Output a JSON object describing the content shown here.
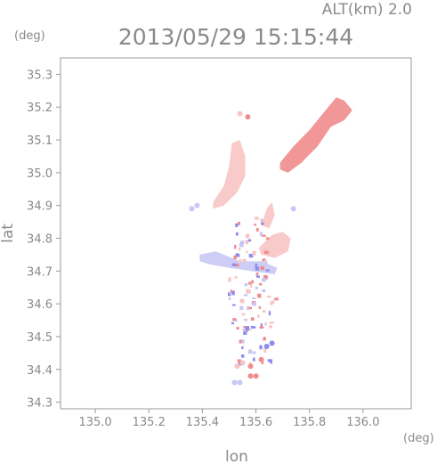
{
  "header": {
    "altitude": "ALT(km) 2.0",
    "timestamp": "2013/05/29 15:15:44"
  },
  "chart_data": {
    "type": "scatter",
    "title": "2013/05/29 15:15:44",
    "subtitle": "ALT(km) 2.0",
    "xlabel": "lon",
    "ylabel": "lat",
    "x_unit": "(deg)",
    "y_unit": "(deg)",
    "xlim": [
      134.87,
      136.18
    ],
    "ylim": [
      34.28,
      35.35
    ],
    "x_ticks": [
      "135.0",
      "135.2",
      "135.4",
      "135.6",
      "135.8",
      "136.0"
    ],
    "y_ticks": [
      "34.3",
      "34.4",
      "34.5",
      "34.6",
      "34.7",
      "34.8",
      "34.9",
      "35.0",
      "35.1",
      "35.2",
      "35.3"
    ],
    "grid": false,
    "legend": "none",
    "colors": {
      "positive": "#f08c8c",
      "positive_light": "#f7c4c4",
      "negative": "#8c8cf0",
      "negative_light": "#c8c8f5",
      "axis": "#9a9a9a",
      "text": "#8a8a8a"
    },
    "regions": [
      {
        "name": "northeast-band",
        "sign": "positive",
        "points": [
          [
            135.69,
            35.03
          ],
          [
            135.74,
            35.08
          ],
          [
            135.8,
            35.13
          ],
          [
            135.86,
            35.19
          ],
          [
            135.9,
            35.23
          ],
          [
            135.93,
            35.22
          ],
          [
            135.96,
            35.19
          ],
          [
            135.93,
            35.16
          ],
          [
            135.88,
            35.14
          ],
          [
            135.83,
            35.08
          ],
          [
            135.77,
            35.03
          ],
          [
            135.72,
            35.0
          ],
          [
            135.69,
            35.01
          ]
        ]
      },
      {
        "name": "northwest-band",
        "sign": "positive_light",
        "points": [
          [
            135.44,
            34.91
          ],
          [
            135.48,
            34.96
          ],
          [
            135.5,
            35.02
          ],
          [
            135.51,
            35.09
          ],
          [
            135.54,
            35.1
          ],
          [
            135.56,
            35.05
          ],
          [
            135.56,
            34.99
          ],
          [
            135.53,
            34.94
          ],
          [
            135.48,
            34.9
          ],
          [
            135.44,
            34.89
          ]
        ]
      },
      {
        "name": "west-blue-patch",
        "sign": "negative_light",
        "points": [
          [
            135.39,
            34.75
          ],
          [
            135.45,
            34.76
          ],
          [
            135.54,
            34.73
          ],
          [
            135.62,
            34.73
          ],
          [
            135.68,
            34.71
          ],
          [
            135.67,
            34.69
          ],
          [
            135.58,
            34.7
          ],
          [
            135.5,
            34.71
          ],
          [
            135.43,
            34.72
          ],
          [
            135.39,
            34.73
          ]
        ]
      },
      {
        "name": "central-red-patch",
        "sign": "positive_light",
        "points": [
          [
            135.61,
            34.77
          ],
          [
            135.66,
            34.81
          ],
          [
            135.7,
            34.82
          ],
          [
            135.73,
            34.8
          ],
          [
            135.72,
            34.76
          ],
          [
            135.67,
            34.74
          ],
          [
            135.62,
            34.75
          ]
        ]
      },
      {
        "name": "north-center-patch",
        "sign": "positive_light",
        "points": [
          [
            135.62,
            34.84
          ],
          [
            135.64,
            34.89
          ],
          [
            135.66,
            34.91
          ],
          [
            135.67,
            34.87
          ],
          [
            135.65,
            34.83
          ]
        ]
      }
    ],
    "scatter_points": [
      {
        "lon": 135.58,
        "lat": 34.41,
        "sign": "positive"
      },
      {
        "lon": 135.58,
        "lat": 34.38,
        "sign": "positive"
      },
      {
        "lon": 135.6,
        "lat": 34.38,
        "sign": "positive"
      },
      {
        "lon": 135.53,
        "lat": 34.41,
        "sign": "positive_light"
      },
      {
        "lon": 135.55,
        "lat": 34.42,
        "sign": "positive_light"
      },
      {
        "lon": 135.57,
        "lat": 35.17,
        "sign": "positive"
      },
      {
        "lon": 135.54,
        "lat": 35.18,
        "sign": "positive_light"
      },
      {
        "lon": 135.52,
        "lat": 34.36,
        "sign": "negative_light"
      },
      {
        "lon": 135.54,
        "lat": 34.36,
        "sign": "negative_light"
      },
      {
        "lon": 135.36,
        "lat": 34.89,
        "sign": "negative_light"
      },
      {
        "lon": 135.38,
        "lat": 34.9,
        "sign": "negative_light"
      },
      {
        "lon": 135.74,
        "lat": 34.89,
        "sign": "negative_light"
      },
      {
        "lon": 135.64,
        "lat": 34.47,
        "sign": "negative"
      },
      {
        "lon": 135.66,
        "lat": 34.48,
        "sign": "negative"
      },
      {
        "lon": 135.62,
        "lat": 34.43,
        "sign": "positive"
      }
    ],
    "dense_cluster": {
      "lon_range": [
        135.47,
        135.7
      ],
      "lat_range": [
        34.42,
        34.87
      ],
      "signs": [
        "positive",
        "negative",
        "positive_light",
        "negative_light"
      ]
    }
  }
}
